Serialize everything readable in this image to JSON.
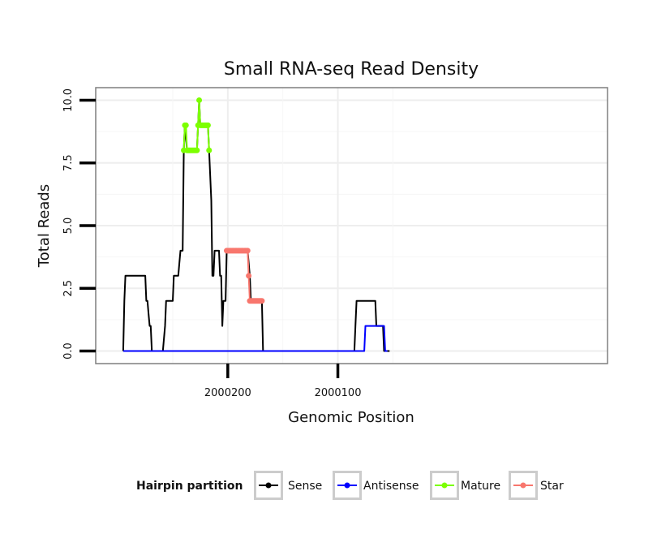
{
  "chart_data": {
    "type": "line",
    "title": "Small RNA-seq Read Density",
    "xlabel": "Genomic Position",
    "ylabel": "Total Reads",
    "xlim": [
      2000320,
      1999855
    ],
    "ylim": [
      -0.5,
      10.5
    ],
    "x_reversed": true,
    "x_ticks": [
      2000200,
      2000100
    ],
    "x_tick_labels": [
      "2000200",
      "2000100"
    ],
    "y_ticks": [
      0,
      2.5,
      5,
      7.5,
      10
    ],
    "y_tick_labels": [
      "0.0",
      "2.5",
      "5.0",
      "7.5",
      "10.0"
    ],
    "grid": true,
    "legend": {
      "title": "Hairpin partition",
      "position": "bottom",
      "entries": [
        "Sense",
        "Antisense",
        "Mature",
        "Star"
      ]
    },
    "series": [
      {
        "name": "Sense",
        "color": "#000000",
        "style": "line",
        "points": [
          [
            2000295,
            0
          ],
          [
            2000294,
            2
          ],
          [
            2000293,
            3
          ],
          [
            2000275,
            3
          ],
          [
            2000274,
            2
          ],
          [
            2000273,
            2
          ],
          [
            2000272,
            1.5
          ],
          [
            2000271,
            1
          ],
          [
            2000270,
            1
          ],
          [
            2000269,
            0
          ],
          [
            2000259,
            0
          ],
          [
            2000257,
            1
          ],
          [
            2000256,
            2
          ],
          [
            2000250,
            2
          ],
          [
            2000249,
            3
          ],
          [
            2000245,
            3
          ],
          [
            2000244,
            3.5
          ],
          [
            2000243,
            4
          ],
          [
            2000241,
            4
          ],
          [
            2000240,
            8
          ],
          [
            2000239,
            9
          ],
          [
            2000237,
            8
          ],
          [
            2000228,
            8
          ],
          [
            2000227,
            9
          ],
          [
            2000226,
            10
          ],
          [
            2000225,
            9
          ],
          [
            2000218,
            9
          ],
          [
            2000217,
            8
          ],
          [
            2000215,
            6
          ],
          [
            2000214,
            3
          ],
          [
            2000213,
            3
          ],
          [
            2000212,
            4
          ],
          [
            2000208,
            4
          ],
          [
            2000207,
            3
          ],
          [
            2000206,
            3
          ],
          [
            2000205,
            1
          ],
          [
            2000204,
            2
          ],
          [
            2000202,
            2
          ],
          [
            2000201,
            4
          ],
          [
            2000182,
            4
          ],
          [
            2000180,
            3
          ],
          [
            2000179,
            2
          ],
          [
            2000169,
            2
          ],
          [
            2000168,
            0
          ],
          [
            2000085,
            0
          ],
          [
            2000084,
            1
          ],
          [
            2000083,
            2
          ],
          [
            2000066,
            2
          ],
          [
            2000065,
            1
          ],
          [
            2000059,
            1
          ],
          [
            2000058,
            0
          ],
          [
            2000053,
            0
          ]
        ]
      },
      {
        "name": "Antisense",
        "color": "#0000ff",
        "style": "line",
        "points": [
          [
            2000295,
            0
          ],
          [
            2000076,
            0
          ],
          [
            2000075,
            1
          ],
          [
            2000058,
            1
          ],
          [
            2000057,
            0
          ],
          [
            2000055,
            0
          ]
        ]
      },
      {
        "name": "Mature",
        "color": "#7cff00",
        "style": "line+points",
        "points": [
          [
            2000240,
            8
          ],
          [
            2000239,
            9
          ],
          [
            2000238,
            9
          ],
          [
            2000237,
            8
          ],
          [
            2000236,
            8
          ],
          [
            2000235,
            8
          ],
          [
            2000234,
            8
          ],
          [
            2000233,
            8
          ],
          [
            2000232,
            8
          ],
          [
            2000231,
            8
          ],
          [
            2000230,
            8
          ],
          [
            2000229,
            8
          ],
          [
            2000228,
            8
          ],
          [
            2000227,
            9
          ],
          [
            2000226,
            10
          ],
          [
            2000225,
            9
          ],
          [
            2000224,
            9
          ],
          [
            2000223,
            9
          ],
          [
            2000222,
            9
          ],
          [
            2000221,
            9
          ],
          [
            2000220,
            9
          ],
          [
            2000219,
            9
          ],
          [
            2000218,
            9
          ],
          [
            2000217,
            8
          ]
        ]
      },
      {
        "name": "Star",
        "color": "#f8766d",
        "style": "line+points",
        "points": [
          [
            2000201,
            4
          ],
          [
            2000200,
            4
          ],
          [
            2000199,
            4
          ],
          [
            2000198,
            4
          ],
          [
            2000197,
            4
          ],
          [
            2000196,
            4
          ],
          [
            2000195,
            4
          ],
          [
            2000194,
            4
          ],
          [
            2000193,
            4
          ],
          [
            2000192,
            4
          ],
          [
            2000191,
            4
          ],
          [
            2000190,
            4
          ],
          [
            2000189,
            4
          ],
          [
            2000188,
            4
          ],
          [
            2000187,
            4
          ],
          [
            2000186,
            4
          ],
          [
            2000185,
            4
          ],
          [
            2000184,
            4
          ],
          [
            2000183,
            4
          ],
          [
            2000182,
            4
          ],
          [
            2000181,
            3
          ],
          [
            2000180,
            2
          ],
          [
            2000179,
            2
          ],
          [
            2000178,
            2
          ],
          [
            2000177,
            2
          ],
          [
            2000176,
            2
          ],
          [
            2000175,
            2
          ],
          [
            2000174,
            2
          ],
          [
            2000173,
            2
          ],
          [
            2000172,
            2
          ],
          [
            2000171,
            2
          ],
          [
            2000170,
            2
          ],
          [
            2000169,
            2
          ]
        ]
      }
    ]
  }
}
